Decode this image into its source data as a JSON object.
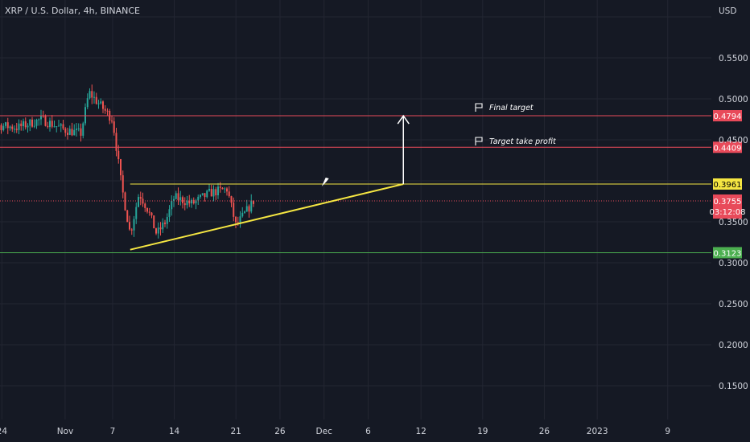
{
  "header": {
    "symbol_title": "XRP / U.S. Dollar, 4h, BINANCE",
    "currency": "USD"
  },
  "colors": {
    "background": "#151924",
    "grid": "#232632",
    "up": "#26a69a",
    "down": "#ef5350",
    "resistance": "#f5e642",
    "target_line": "#e84a5a",
    "support_line": "#4caf50",
    "arrow": "#ffffff"
  },
  "chart_data": {
    "type": "candlestick",
    "title": "XRP / U.S. Dollar, 4h, BINANCE",
    "xlabel": "",
    "ylabel": "USD",
    "y_ticks": [
      "0.5500",
      "0.5000",
      "0.4500",
      "0.3500",
      "0.3000",
      "0.2500",
      "0.2000",
      "0.1500"
    ],
    "ylim": [
      0.12,
      0.6
    ],
    "x_ticks": [
      "24",
      "Nov",
      "7",
      "14",
      "21",
      "26",
      "Dec",
      "6",
      "12",
      "19",
      "26",
      "2023",
      "9"
    ],
    "grid": true,
    "series": [
      {
        "kind": "close_path",
        "x": [
          "Oct 20",
          "Oct 23",
          "Oct 26",
          "Oct 29",
          "Nov 1",
          "Nov 3",
          "Nov 4",
          "Nov 5",
          "Nov 7",
          "Nov 8",
          "Nov 9",
          "Nov 10",
          "Nov 11",
          "Nov 12",
          "Nov 13",
          "Nov 14",
          "Nov 16",
          "Nov 18",
          "Nov 20",
          "Nov 21",
          "Nov 22",
          "Nov 23"
        ],
        "close": [
          0.456,
          0.468,
          0.465,
          0.475,
          0.462,
          0.458,
          0.508,
          0.497,
          0.475,
          0.395,
          0.335,
          0.385,
          0.365,
          0.335,
          0.35,
          0.38,
          0.372,
          0.385,
          0.39,
          0.345,
          0.36,
          0.3755
        ]
      }
    ],
    "levels": [
      {
        "name": "Final target",
        "value": 0.4794,
        "label": "0.4794",
        "color": "#e84a5a"
      },
      {
        "name": "Target take profit",
        "value": 0.4409,
        "label": "0.4409",
        "color": "#e84a5a"
      },
      {
        "name": "",
        "value": 0.3961,
        "label": "0.3961",
        "color": "#f5e642"
      },
      {
        "name": "",
        "value": 0.3123,
        "label": "0.3123",
        "color": "#4caf50"
      }
    ],
    "current_price": {
      "value": 0.3755,
      "label": "0.3755",
      "countdown": "03:12:08",
      "color": "#e84a5a"
    },
    "trendline": {
      "from": {
        "x": "Nov 9",
        "y": 0.316
      },
      "to": {
        "x": "Dec 10",
        "y": 0.3961
      },
      "color": "#f5e642"
    },
    "arrow": {
      "x": "Dec 10",
      "from": 0.3961,
      "to": 0.4794
    }
  },
  "annotations": {
    "final_target": "Final target",
    "take_profit": "Target take profit"
  }
}
